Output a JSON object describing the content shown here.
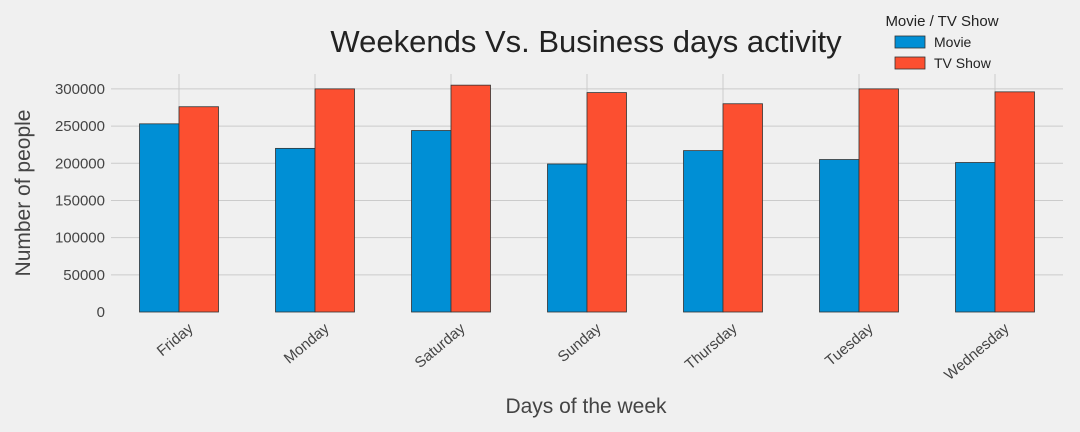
{
  "chart_data": {
    "type": "bar",
    "title": "Weekends Vs. Business days activity",
    "xlabel": "Days of the week",
    "ylabel": "Number of people",
    "categories": [
      "Friday",
      "Monday",
      "Saturday",
      "Sunday",
      "Thursday",
      "Tuesday",
      "Wednesday"
    ],
    "series": [
      {
        "name": "Movie",
        "color": "#008fd5",
        "values": [
          253000,
          220000,
          244000,
          199000,
          217000,
          205000,
          201000
        ]
      },
      {
        "name": "TV Show",
        "color": "#fc4f30",
        "values": [
          276000,
          300000,
          305000,
          295000,
          280000,
          300000,
          296000
        ]
      }
    ],
    "ylim": [
      0,
      320000
    ],
    "yticks": [
      0,
      50000,
      100000,
      150000,
      200000,
      250000,
      300000
    ],
    "ytick_labels": [
      "0",
      "50000",
      "100000",
      "150000",
      "200000",
      "250000",
      "300000"
    ],
    "legend": {
      "title": "Movie / TV Show",
      "position": "top-right"
    },
    "grid": true,
    "xtick_rotation": -40
  }
}
